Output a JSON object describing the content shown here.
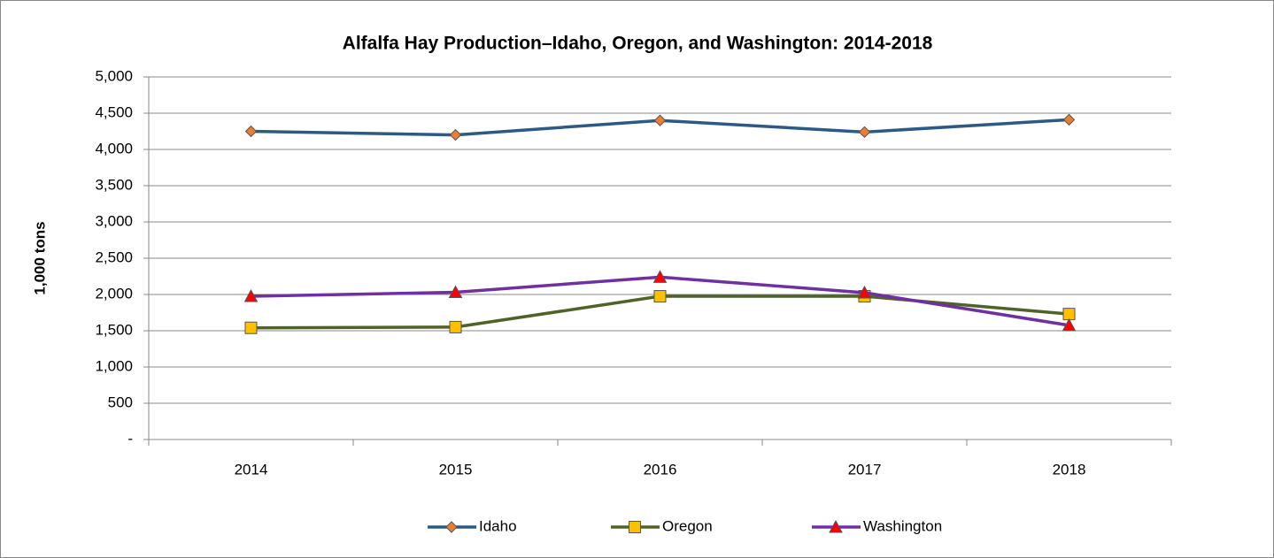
{
  "chart_data": {
    "type": "line",
    "title": "Alfalfa Hay Production–Idaho, Oregon, and Washington: 2014-2018",
    "y_label": "1,000 tons",
    "categories": [
      "2014",
      "2015",
      "2016",
      "2017",
      "2018"
    ],
    "series": [
      {
        "name": "Idaho",
        "color": "#2C5A85",
        "marker": "diamond",
        "marker_color": "#ED7D31",
        "values": [
          4250,
          4200,
          4400,
          4240,
          4410
        ]
      },
      {
        "name": "Oregon",
        "color": "#4F6228",
        "marker": "square",
        "marker_color": "#FFC000",
        "values": [
          1540,
          1550,
          1975,
          1975,
          1730
        ]
      },
      {
        "name": "Washington",
        "color": "#7030A0",
        "marker": "triangle",
        "marker_color": "#FF0000",
        "values": [
          1975,
          2030,
          2240,
          2025,
          1575
        ]
      }
    ],
    "ylim": [
      0,
      5000
    ],
    "yticks": [
      {
        "value": 0,
        "label": "-"
      },
      500,
      {
        "value": 1000,
        "label": "1,000"
      },
      {
        "value": 1500,
        "label": "1,500"
      },
      {
        "value": 2000,
        "label": "2,000"
      },
      {
        "value": 2500,
        "label": "2,500"
      },
      {
        "value": 3000,
        "label": "3,000"
      },
      {
        "value": 3500,
        "label": "3,500"
      },
      {
        "value": 4000,
        "label": "4,000"
      },
      {
        "value": 4500,
        "label": "4,500"
      },
      {
        "value": 5000,
        "label": "5,000"
      }
    ],
    "grid": true,
    "legend": "bottom"
  }
}
